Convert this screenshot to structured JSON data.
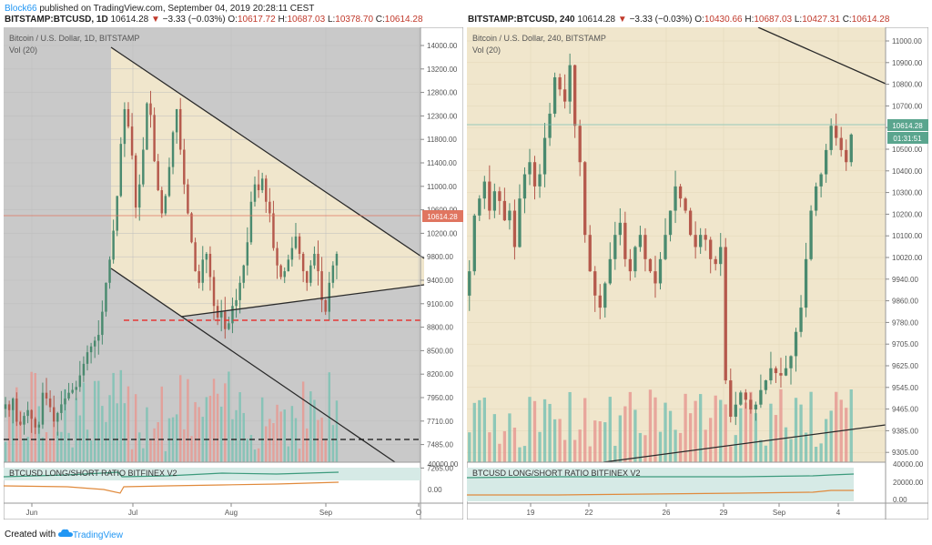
{
  "header": {
    "user": "Block66",
    "text": " published on TradingView.com, September 04, 2019 20:28:11 CEST"
  },
  "left": {
    "symbol": "BITSTAMP:BTCUSD, 1D",
    "price": "10614.28",
    "change": "−3.33 (−0.03%)",
    "o_label": "O:",
    "o": "10617.72",
    "h_label": "H:",
    "h": "10687.03",
    "l_label": "L:",
    "l": "10378.70",
    "c_label": "C:",
    "c": "10614.28"
  },
  "right": {
    "symbol": "BITSTAMP:BTCUSD, 240",
    "price": "10614.28",
    "change": "−3.33 (−0.03%)",
    "o_label": "O:",
    "o": "10430.66",
    "h_label": "H:",
    "h": "10687.03",
    "l_label": "L:",
    "l": "10427.31",
    "c_label": "C:",
    "c": "10614.28"
  },
  "footer": {
    "created": "Created with",
    "brand": "TradingView"
  },
  "colors": {
    "up": "#4a8a6f",
    "down": "#b5594c",
    "vol_up": "#7cc2b4",
    "vol_down": "#e69a93",
    "bg": "#c9c9c9",
    "wedge": "#f0e6cc"
  },
  "chart_data": [
    {
      "type": "candlestick",
      "title": "Bitcoin / U.S. Dollar, 1D, BITSTAMP",
      "subtitle": "Vol (20)",
      "price_label": "10614.28",
      "y_ticks": [
        "14000.00",
        "13200.00",
        "12800.00",
        "12300.00",
        "11800.00",
        "11400.00",
        "11000.00",
        "10600.00",
        "10200.00",
        "9800.00",
        "9400.00",
        "9100.00",
        "8800.00",
        "8500.00",
        "8200.00",
        "7950.00",
        "7710.00",
        "7485.00",
        "7265.00"
      ],
      "x_ticks": [
        "Jun",
        "Jul",
        "Aug",
        "Sep",
        "O"
      ],
      "indicator": {
        "title": "BTCUSD LONG/SHORT RATIO BITFINEX V2",
        "y_ticks": [
          "40000.00",
          "0.00"
        ]
      },
      "close_series": [
        8000,
        7900,
        8100,
        7700,
        7650,
        7800,
        7900,
        7750,
        7600,
        7650,
        8200,
        8100,
        7950,
        7700,
        7850,
        8000,
        8100,
        8200,
        8250,
        8300,
        8500,
        8700,
        8900,
        9000,
        9100,
        9200,
        9600,
        10100,
        10500,
        11000,
        11600,
        12500,
        13100,
        12800,
        12300,
        11400,
        11800,
        12400,
        13200,
        13000,
        12200,
        11700,
        11300,
        11600,
        12100,
        12700,
        13100,
        12400,
        11800,
        11300,
        10800,
        10300,
        10100,
        10500,
        10600,
        10200,
        9700,
        9500,
        9600,
        9300,
        9400,
        9700,
        9800,
        10100,
        10400,
        10800,
        11500,
        11800,
        11700,
        11900,
        11500,
        11300,
        10700,
        10400,
        10200,
        10300,
        10500,
        10700,
        10900,
        10600,
        10300,
        10100,
        10400,
        10600,
        10300,
        9800,
        9600,
        10100,
        10400,
        10600
      ]
    },
    {
      "type": "candlestick",
      "title": "Bitcoin / U.S. Dollar, 240, BITSTAMP",
      "subtitle": "Vol (20)",
      "price_label": "10614.28",
      "timer_label": "01:31:51",
      "y_ticks": [
        "11000.00",
        "10900.00",
        "10800.00",
        "10700.00",
        "10600.00",
        "10500.00",
        "10400.00",
        "10300.00",
        "10200.00",
        "10100.00",
        "10020.00",
        "9940.00",
        "9860.00",
        "9780.00",
        "9705.00",
        "9625.00",
        "9545.00",
        "9465.00",
        "9385.00",
        "9305.00"
      ],
      "x_ticks": [
        "19",
        "22",
        "26",
        "29",
        "Sep",
        "4"
      ],
      "indicator": {
        "title": "BTCUSD LONG/SHORT RATIO BITFINEX V2",
        "y_ticks": [
          "40000.00",
          "20000.00",
          "0.00"
        ]
      },
      "close_series": [
        10050,
        10280,
        10350,
        10420,
        10300,
        10380,
        10340,
        10260,
        10300,
        10150,
        10350,
        10450,
        10500,
        10400,
        10450,
        10600,
        10700,
        10850,
        10800,
        10750,
        10900,
        10650,
        10500,
        10200,
        10050,
        9950,
        9900,
        10000,
        10100,
        10200,
        10250,
        10100,
        10050,
        10150,
        10200,
        10100,
        10050,
        10000,
        10100,
        10200,
        10300,
        10400,
        10350,
        10300,
        10200,
        10150,
        10200,
        10180,
        10100,
        10080,
        10150,
        9600,
        9450,
        9500,
        9550,
        9520,
        9480,
        9500,
        9560,
        9600,
        9650,
        9630,
        9620,
        9650,
        9700,
        9800,
        9900,
        10100,
        10300,
        10400,
        10450,
        10550,
        10650,
        10600,
        10550,
        10500,
        10614
      ]
    }
  ]
}
